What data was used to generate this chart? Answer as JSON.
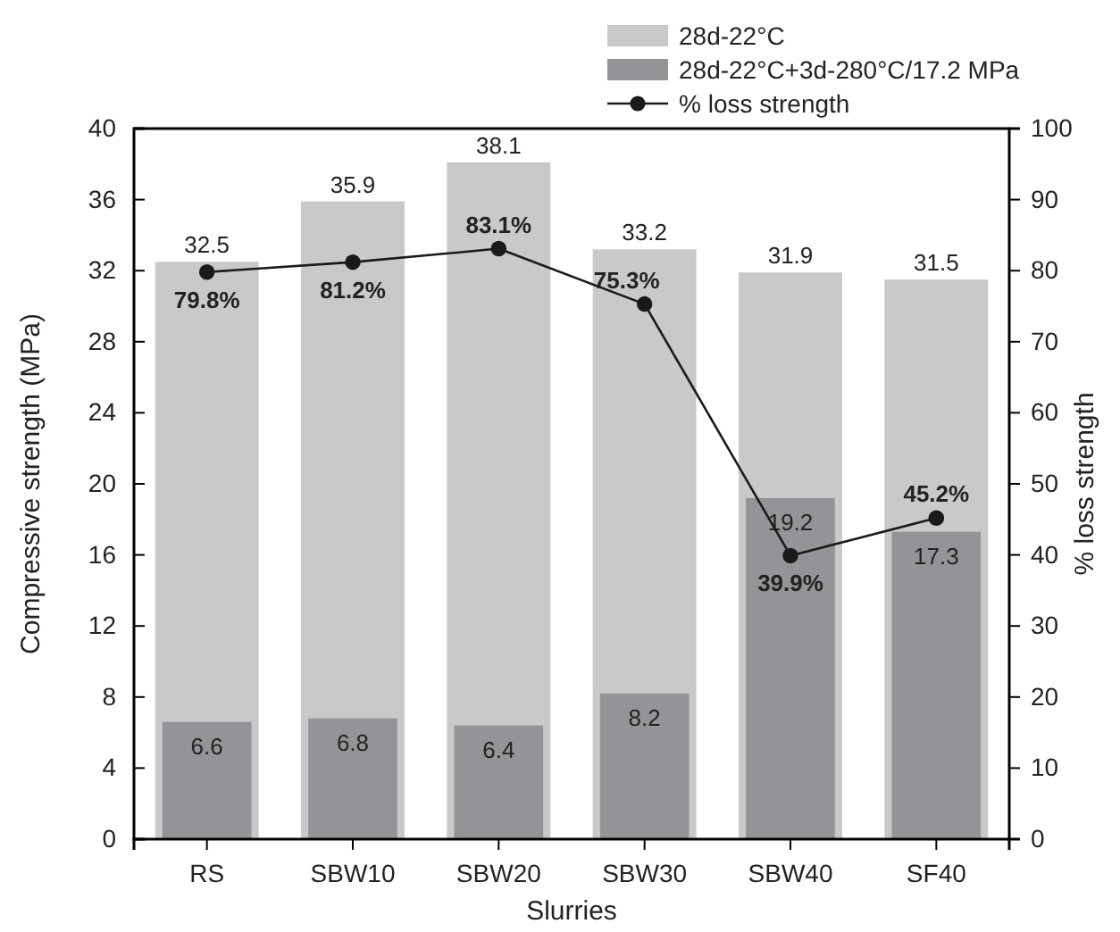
{
  "chart_data": {
    "type": "bar",
    "xlabel": "Slurries",
    "ylabel": "Compressive strength (MPa)",
    "y2label": "% loss strength",
    "categories": [
      "RS",
      "SBW10",
      "SBW20",
      "SBW30",
      "SBW40",
      "SF40"
    ],
    "series": [
      {
        "name": "28d-22°C",
        "color": "#c8c9cb",
        "values": [
          32.5,
          35.9,
          38.1,
          33.2,
          31.9,
          31.5
        ],
        "value_labels": [
          "32.5",
          "35.9",
          "38.1",
          "33.2",
          "31.9",
          "31.5"
        ]
      },
      {
        "name": "28d-22°C+3d-280°C/17.2 MPa",
        "color": "#939497",
        "values": [
          6.6,
          6.8,
          6.4,
          8.2,
          19.2,
          17.3
        ],
        "value_labels": [
          "6.6",
          "6.8",
          "6.4",
          "8.2",
          "19.2",
          "17.3"
        ]
      },
      {
        "name": "% loss strength",
        "type": "line",
        "axis": "y2",
        "color": "#1a1a1a",
        "marker": "circle",
        "values": [
          79.8,
          81.2,
          83.1,
          75.3,
          39.9,
          45.2
        ],
        "value_labels": [
          "79.8%",
          "81.2%",
          "83.1%",
          "75.3%",
          "39.9%",
          "45.2%"
        ]
      }
    ],
    "ylim": [
      0,
      40
    ],
    "yticks": [
      0,
      4,
      8,
      12,
      16,
      20,
      24,
      28,
      32,
      36,
      40
    ],
    "y2lim": [
      0,
      100
    ],
    "y2ticks": [
      0,
      10,
      20,
      30,
      40,
      50,
      60,
      70,
      80,
      90,
      100
    ],
    "legend": "top right",
    "grid": false
  }
}
